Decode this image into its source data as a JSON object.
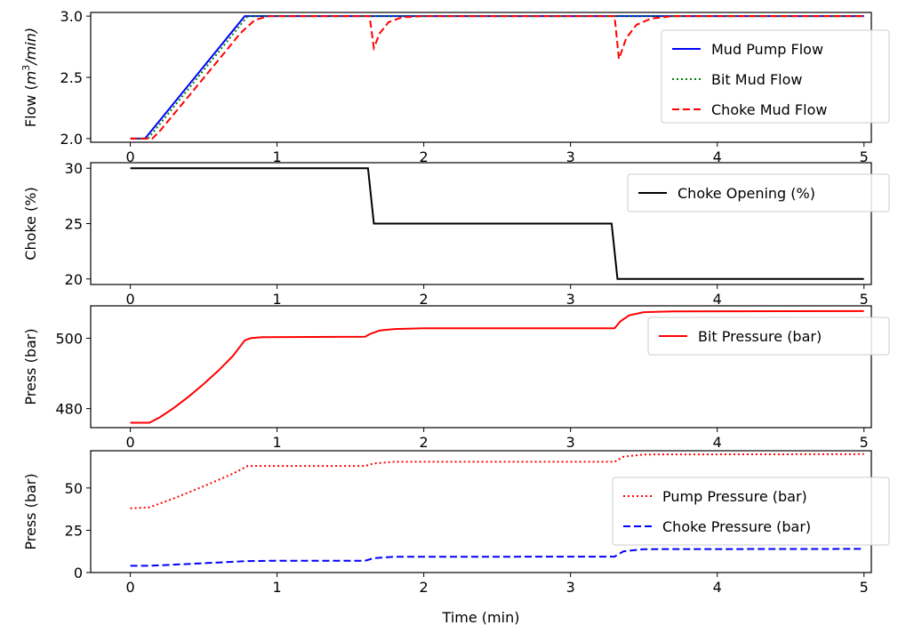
{
  "chart_data": [
    {
      "type": "line",
      "ylabel_prefix": "Flow (",
      "ylabel_math": "m",
      "ylabel_sup": "3",
      "ylabel_suffix": "/min)",
      "xlim": [
        -0.27,
        5.05
      ],
      "ylim": [
        1.97,
        3.03
      ],
      "xticks": [
        0,
        1,
        2,
        3,
        4,
        5
      ],
      "xtick_labels": [
        "0",
        "1",
        "2",
        "3",
        "4",
        "5"
      ],
      "yticks": [
        2.0,
        2.5,
        3.0
      ],
      "ytick_labels": [
        "2.0",
        "2.5",
        "3.0"
      ],
      "legend_position": "right",
      "series": [
        {
          "name": "Mud Pump Flow",
          "color": "#0000ff",
          "style": "solid",
          "points": [
            [
              0,
              2.0
            ],
            [
              0.1,
              2.0
            ],
            [
              0.78,
              3.0
            ],
            [
              5.0,
              3.0
            ]
          ]
        },
        {
          "name": "Bit Mud Flow",
          "color": "#008000",
          "style": "dotted",
          "points": [
            [
              0,
              2.0
            ],
            [
              0.12,
              2.0
            ],
            [
              0.8,
              3.0
            ],
            [
              5.0,
              3.0
            ]
          ]
        },
        {
          "name": "Choke Mud Flow",
          "color": "#ff0000",
          "style": "dashed",
          "points": [
            [
              0,
              2.0
            ],
            [
              0.15,
              2.0
            ],
            [
              0.2,
              2.06
            ],
            [
              0.4,
              2.35
            ],
            [
              0.6,
              2.64
            ],
            [
              0.75,
              2.86
            ],
            [
              0.85,
              2.97
            ],
            [
              0.95,
              3.0
            ],
            [
              1.63,
              3.0
            ],
            [
              1.66,
              2.74
            ],
            [
              1.7,
              2.86
            ],
            [
              1.76,
              2.95
            ],
            [
              1.85,
              2.99
            ],
            [
              2.0,
              3.0
            ],
            [
              3.3,
              3.0
            ],
            [
              3.33,
              2.65
            ],
            [
              3.38,
              2.82
            ],
            [
              3.45,
              2.93
            ],
            [
              3.55,
              2.98
            ],
            [
              3.7,
              3.0
            ],
            [
              5.0,
              3.0
            ]
          ]
        }
      ]
    },
    {
      "type": "line",
      "ylabel": "Choke (%)",
      "xlim": [
        -0.27,
        5.05
      ],
      "ylim": [
        19.5,
        30.5
      ],
      "xticks": [
        0,
        1,
        2,
        3,
        4,
        5
      ],
      "xtick_labels": [
        "0",
        "1",
        "2",
        "3",
        "4",
        "5"
      ],
      "yticks": [
        20,
        25,
        30
      ],
      "ytick_labels": [
        "20",
        "25",
        "30"
      ],
      "legend_position": "upper right",
      "series": [
        {
          "name": "Choke Opening (%)",
          "color": "#000000",
          "style": "solid",
          "points": [
            [
              0,
              30
            ],
            [
              1.62,
              30
            ],
            [
              1.66,
              25
            ],
            [
              3.28,
              25
            ],
            [
              3.32,
              20
            ],
            [
              5.0,
              20
            ]
          ]
        }
      ]
    },
    {
      "type": "line",
      "ylabel": "Press (bar)",
      "xlim": [
        -0.27,
        5.05
      ],
      "ylim": [
        474.6,
        509.2
      ],
      "xticks": [
        0,
        1,
        2,
        3,
        4,
        5
      ],
      "xtick_labels": [
        "0",
        "1",
        "2",
        "3",
        "4",
        "5"
      ],
      "yticks": [
        480,
        500
      ],
      "ytick_labels": [
        "480",
        "500"
      ],
      "legend_position": "upper right",
      "series": [
        {
          "name": "Bit Pressure (bar)",
          "color": "#ff0000",
          "style": "solid",
          "points": [
            [
              0,
              476
            ],
            [
              0.13,
              476
            ],
            [
              0.2,
              477.5
            ],
            [
              0.3,
              480.3
            ],
            [
              0.4,
              483.5
            ],
            [
              0.5,
              487.0
            ],
            [
              0.6,
              490.8
            ],
            [
              0.7,
              495.0
            ],
            [
              0.78,
              499.4
            ],
            [
              0.82,
              500.0
            ],
            [
              0.9,
              500.3
            ],
            [
              1.6,
              500.4
            ],
            [
              1.64,
              501.3
            ],
            [
              1.7,
              502.2
            ],
            [
              1.8,
              502.6
            ],
            [
              2.0,
              502.8
            ],
            [
              3.3,
              502.8
            ],
            [
              3.34,
              504.8
            ],
            [
              3.4,
              506.5
            ],
            [
              3.5,
              507.4
            ],
            [
              3.7,
              507.6
            ],
            [
              5.0,
              507.7
            ]
          ]
        }
      ]
    },
    {
      "type": "line",
      "ylabel": "Press (bar)",
      "xlabel": "Time (min)",
      "xlim": [
        -0.27,
        5.05
      ],
      "ylim": [
        0,
        72
      ],
      "xticks": [
        0,
        1,
        2,
        3,
        4,
        5
      ],
      "xtick_labels": [
        "0",
        "1",
        "2",
        "3",
        "4",
        "5"
      ],
      "yticks": [
        0,
        25,
        50
      ],
      "ytick_labels": [
        "0",
        "25",
        "50"
      ],
      "legend_position": "right",
      "series": [
        {
          "name": "Pump Pressure (bar)",
          "color": "#ff0000",
          "style": "dotted",
          "points": [
            [
              0,
              38
            ],
            [
              0.13,
              38.5
            ],
            [
              0.3,
              44
            ],
            [
              0.5,
              51
            ],
            [
              0.7,
              58.5
            ],
            [
              0.8,
              63
            ],
            [
              1.6,
              63
            ],
            [
              1.66,
              64.5
            ],
            [
              1.8,
              65.5
            ],
            [
              3.3,
              65.5
            ],
            [
              3.36,
              68.5
            ],
            [
              3.5,
              69.8
            ],
            [
              5.0,
              70
            ]
          ]
        },
        {
          "name": "Choke Pressure (bar)",
          "color": "#0000ff",
          "style": "dashed",
          "points": [
            [
              0,
              4
            ],
            [
              0.13,
              4
            ],
            [
              0.5,
              5.5
            ],
            [
              0.8,
              6.8
            ],
            [
              1.0,
              7.0
            ],
            [
              1.6,
              7.0
            ],
            [
              1.66,
              8.5
            ],
            [
              1.8,
              9.3
            ],
            [
              3.3,
              9.4
            ],
            [
              3.36,
              12.5
            ],
            [
              3.5,
              13.8
            ],
            [
              5.0,
              14.0
            ]
          ]
        }
      ]
    }
  ]
}
